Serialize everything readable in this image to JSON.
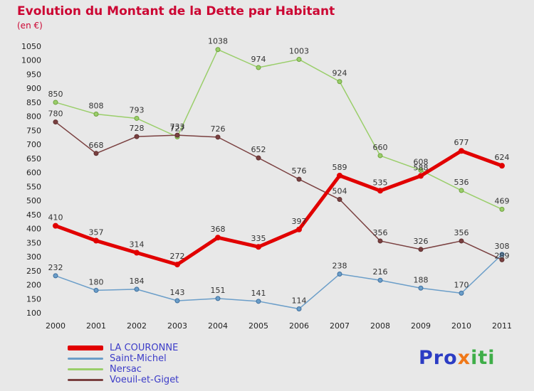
{
  "chart_data": {
    "type": "line",
    "title": "Evolution du Montant de la Dette par Habitant",
    "subtitle": "(en €)",
    "xlabel": "",
    "ylabel": "",
    "ylim": [
      100,
      1050
    ],
    "ytick_step": 50,
    "grid": false,
    "legend_position": "bottom-left",
    "categories": [
      "2000",
      "2001",
      "2002",
      "2003",
      "2004",
      "2005",
      "2006",
      "2007",
      "2008",
      "2009",
      "2010",
      "2011"
    ],
    "series": [
      {
        "name": "LA COURONNE",
        "color": "#e10000",
        "edge": "#e10000",
        "width": 5,
        "marker": 3.5,
        "values": [
          410,
          357,
          314,
          272,
          368,
          335,
          397,
          589,
          535,
          588,
          677,
          624
        ]
      },
      {
        "name": "Saint-Michel",
        "color": "#6b9ec9",
        "edge": "#3e6f9e",
        "width": 1.5,
        "marker": 3,
        "values": [
          232,
          180,
          184,
          143,
          151,
          141,
          114,
          238,
          216,
          188,
          170,
          308
        ]
      },
      {
        "name": "Nersac",
        "color": "#9ace6a",
        "edge": "#6fa23e",
        "width": 1.5,
        "marker": 3,
        "values": [
          850,
          808,
          793,
          727,
          1038,
          974,
          1003,
          924,
          660,
          608,
          536,
          469
        ]
      },
      {
        "name": "Voeuil-et-Giget",
        "color": "#7a4040",
        "edge": "#5e3030",
        "width": 1.5,
        "marker": 3,
        "values": [
          780,
          668,
          728,
          733,
          726,
          652,
          576,
          504,
          356,
          326,
          356,
          289
        ]
      }
    ],
    "label_overrides": [
      {
        "series": 3,
        "index": 11,
        "dy": -2
      }
    ],
    "layout": {
      "x0": 78,
      "dx": 57,
      "yTop": 20,
      "yBottom": 395,
      "xLabelY": 417,
      "yTickX": 58
    }
  },
  "logo": {
    "text": "Proxiti",
    "letters": [
      {
        "ch": "P",
        "color": "#2b3cc4"
      },
      {
        "ch": "r",
        "color": "#2b3cc4"
      },
      {
        "ch": "o",
        "color": "#2b3cc4"
      },
      {
        "ch": "x",
        "color": "#f07818"
      },
      {
        "ch": "i",
        "color": "#3fae49"
      },
      {
        "ch": "t",
        "color": "#3fae49"
      },
      {
        "ch": "i",
        "color": "#3fae49"
      }
    ]
  }
}
